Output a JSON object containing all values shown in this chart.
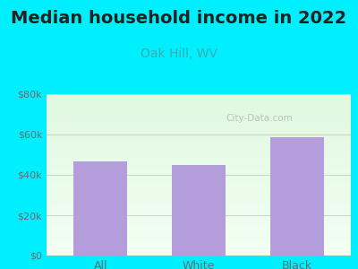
{
  "title": "Median household income in 2022",
  "subtitle": "Oak Hill, WV",
  "categories": [
    "All",
    "White",
    "Black"
  ],
  "values": [
    46500,
    45000,
    58500
  ],
  "bar_color": "#b39ddb",
  "title_fontsize": 14,
  "subtitle_fontsize": 10,
  "subtitle_color": "#3aacac",
  "tick_label_color": "#607070",
  "background_outer": "#00efff",
  "ylim": [
    0,
    80000
  ],
  "yticks": [
    0,
    20000,
    40000,
    60000,
    80000
  ],
  "ytick_labels": [
    "$0",
    "$20k",
    "$40k",
    "$60k",
    "$80k"
  ],
  "watermark": "City-Data.com",
  "grid_color": "#c8d8c8"
}
